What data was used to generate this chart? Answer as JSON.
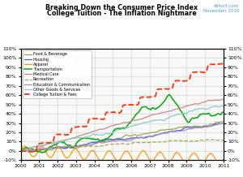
{
  "title1": "Breaking Down the Consumer Price Index",
  "title2": "College Tuition - The Inflation Nightmare",
  "watermark1": "dshort.com",
  "watermark2": "November 2010",
  "xlim": [
    2000,
    2011
  ],
  "ylim": [
    -0.1,
    1.1
  ],
  "yticks": [
    -0.1,
    0.0,
    0.1,
    0.2,
    0.3,
    0.4,
    0.5,
    0.6,
    0.7,
    0.8,
    0.9,
    1.0,
    1.1
  ],
  "ytick_labels": [
    "-10%",
    "0%",
    "10%",
    "20%",
    "30%",
    "40%",
    "50%",
    "60%",
    "70%",
    "80%",
    "90%",
    "100%",
    "110%"
  ],
  "xticks": [
    2000,
    2001,
    2002,
    2003,
    2004,
    2005,
    2006,
    2007,
    2008,
    2009,
    2010,
    2011
  ],
  "series": {
    "Food & Beverage": {
      "color": "#99AA44",
      "lw": 0.9,
      "ls": "-"
    },
    "Housing": {
      "color": "#4466BB",
      "lw": 0.9,
      "ls": "-"
    },
    "Apparel": {
      "color": "#FF9900",
      "lw": 0.9,
      "ls": "-"
    },
    "Transportation": {
      "color": "#00AA00",
      "lw": 1.1,
      "ls": "-"
    },
    "Medical Care": {
      "color": "#CC8888",
      "lw": 0.9,
      "ls": "-"
    },
    "Recreation": {
      "color": "#AAAA44",
      "lw": 0.9,
      "ls": "--"
    },
    "Education & Communication": {
      "color": "#AA88CC",
      "lw": 0.9,
      "ls": "-"
    },
    "Other Goods & Services": {
      "color": "#88CCCC",
      "lw": 0.9,
      "ls": "-"
    },
    "College Tuition & Fees": {
      "color": "#FF3300",
      "lw": 1.3,
      "ls": "--"
    }
  },
  "legend_labels": [
    "Food & Beverage",
    "Housing",
    "Apparel",
    "Transportation",
    "Medical Care",
    "Recreation",
    "Education & Communication",
    "Other Goods & Services",
    "College Tuition & Fees"
  ],
  "background": "#FFFFFF",
  "plot_bg": "#F8F8F8",
  "grid_color": "#CCCCCC"
}
